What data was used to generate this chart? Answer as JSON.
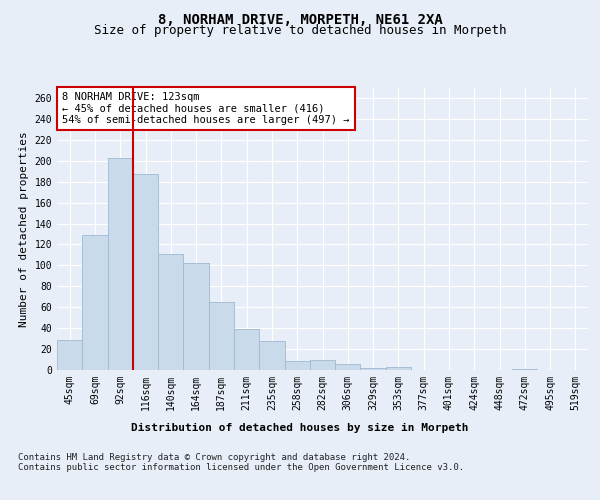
{
  "title": "8, NORHAM DRIVE, MORPETH, NE61 2XA",
  "subtitle": "Size of property relative to detached houses in Morpeth",
  "xlabel": "Distribution of detached houses by size in Morpeth",
  "ylabel": "Number of detached properties",
  "categories": [
    "45sqm",
    "69sqm",
    "92sqm",
    "116sqm",
    "140sqm",
    "164sqm",
    "187sqm",
    "211sqm",
    "235sqm",
    "258sqm",
    "282sqm",
    "306sqm",
    "329sqm",
    "353sqm",
    "377sqm",
    "401sqm",
    "424sqm",
    "448sqm",
    "472sqm",
    "495sqm",
    "519sqm"
  ],
  "values": [
    29,
    129,
    203,
    187,
    111,
    102,
    65,
    39,
    28,
    9,
    10,
    6,
    2,
    3,
    0,
    0,
    0,
    0,
    1,
    0,
    0
  ],
  "bar_color": "#c9daea",
  "bar_edge_color": "#a0b8d0",
  "vline_index": 3,
  "vline_color": "#cc0000",
  "annotation_text": "8 NORHAM DRIVE: 123sqm\n← 45% of detached houses are smaller (416)\n54% of semi-detached houses are larger (497) →",
  "annotation_box_color": "#ffffff",
  "annotation_box_edge_color": "#cc0000",
  "ylim": [
    0,
    270
  ],
  "yticks": [
    0,
    20,
    40,
    60,
    80,
    100,
    120,
    140,
    160,
    180,
    200,
    220,
    240,
    260
  ],
  "footer": "Contains HM Land Registry data © Crown copyright and database right 2024.\nContains public sector information licensed under the Open Government Licence v3.0.",
  "bg_color": "#e8eef8",
  "plot_bg_color": "#e8eef8",
  "grid_color": "#ffffff",
  "title_fontsize": 10,
  "subtitle_fontsize": 9,
  "label_fontsize": 8,
  "tick_fontsize": 7,
  "footer_fontsize": 6.5
}
